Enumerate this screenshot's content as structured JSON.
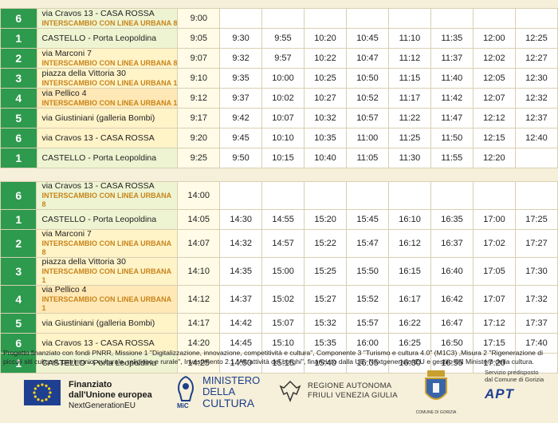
{
  "table1": {
    "rows": [
      {
        "num": "6",
        "stop": "via Cravos 13 - CASA ROSSA",
        "interchange": "INTERSCAMBIO CON LINEA URBANA 8",
        "times": [
          "9:00",
          "",
          "",
          "",
          "",
          "",
          "",
          "",
          ""
        ],
        "tone": "green"
      },
      {
        "num": "1",
        "stop": "CASTELLO - Porta Leopoldina",
        "interchange": "",
        "times": [
          "9:05",
          "9:30",
          "9:55",
          "10:20",
          "10:45",
          "11:10",
          "11:35",
          "12:00",
          "12:25"
        ],
        "tone": "green"
      },
      {
        "num": "2",
        "stop": "via Marconi 7",
        "interchange": "INTERSCAMBIO CON LINEA URBANA 8",
        "times": [
          "9:07",
          "9:32",
          "9:57",
          "10:22",
          "10:47",
          "11:12",
          "11:37",
          "12:02",
          "12:27"
        ],
        "tone": "yellow"
      },
      {
        "num": "3",
        "stop": "piazza della Vittoria 30",
        "interchange": "INTERSCAMBIO CON LINEA URBANA 1",
        "times": [
          "9:10",
          "9:35",
          "10:00",
          "10:25",
          "10:50",
          "11:15",
          "11:40",
          "12:05",
          "12:30"
        ],
        "tone": "yellow"
      },
      {
        "num": "4",
        "stop": "via Pellico 4",
        "interchange": "INTERSCAMBIO CON LINEA URBANA 1",
        "times": [
          "9:12",
          "9:37",
          "10:02",
          "10:27",
          "10:52",
          "11:17",
          "11:42",
          "12:07",
          "12:32"
        ],
        "tone": "orange"
      },
      {
        "num": "5",
        "stop": "via Giustiniani (galleria Bombi)",
        "interchange": "",
        "times": [
          "9:17",
          "9:42",
          "10:07",
          "10:32",
          "10:57",
          "11:22",
          "11:47",
          "12:12",
          "12:37"
        ],
        "tone": "yellow"
      },
      {
        "num": "6",
        "stop": "via Cravos 13 - CASA ROSSA",
        "interchange": "",
        "times": [
          "9:20",
          "9:45",
          "10:10",
          "10:35",
          "11:00",
          "11:25",
          "11:50",
          "12:15",
          "12:40"
        ],
        "tone": "yellow"
      },
      {
        "num": "1",
        "stop": "CASTELLO - Porta Leopoldina",
        "interchange": "",
        "times": [
          "9:25",
          "9:50",
          "10:15",
          "10:40",
          "11:05",
          "11:30",
          "11:55",
          "12:20",
          ""
        ],
        "tone": "green"
      }
    ]
  },
  "table2": {
    "rows": [
      {
        "num": "6",
        "stop": "via Cravos 13 - CASA ROSSA",
        "interchange": "INTERSCAMBIO CON LINEA URBANA 8",
        "times": [
          "14:00",
          "",
          "",
          "",
          "",
          "",
          "",
          "",
          ""
        ],
        "tone": "green"
      },
      {
        "num": "1",
        "stop": "CASTELLO - Porta Leopoldina",
        "interchange": "",
        "times": [
          "14:05",
          "14:30",
          "14:55",
          "15:20",
          "15:45",
          "16:10",
          "16:35",
          "17:00",
          "17:25"
        ],
        "tone": "green"
      },
      {
        "num": "2",
        "stop": "via Marconi 7",
        "interchange": "INTERSCAMBIO CON LINEA URBANA 8",
        "times": [
          "14:07",
          "14:32",
          "14:57",
          "15:22",
          "15:47",
          "16:12",
          "16:37",
          "17:02",
          "17:27"
        ],
        "tone": "yellow"
      },
      {
        "num": "3",
        "stop": "piazza della Vittoria 30",
        "interchange": "INTERSCAMBIO CON LINEA URBANA 1",
        "times": [
          "14:10",
          "14:35",
          "15:00",
          "15:25",
          "15:50",
          "16:15",
          "16:40",
          "17:05",
          "17:30"
        ],
        "tone": "yellow"
      },
      {
        "num": "4",
        "stop": "via Pellico 4",
        "interchange": "INTERSCAMBIO CON LINEA URBANA 1",
        "times": [
          "14:12",
          "14:37",
          "15:02",
          "15:27",
          "15:52",
          "16:17",
          "16:42",
          "17:07",
          "17:32"
        ],
        "tone": "orange"
      },
      {
        "num": "5",
        "stop": "via Giustiniani (galleria Bombi)",
        "interchange": "",
        "times": [
          "14:17",
          "14:42",
          "15:07",
          "15:32",
          "15:57",
          "16:22",
          "16:47",
          "17:12",
          "17:37"
        ],
        "tone": "yellow"
      },
      {
        "num": "6",
        "stop": "via Cravos 13 - CASA ROSSA",
        "interchange": "",
        "times": [
          "14:20",
          "14:45",
          "15:10",
          "15:35",
          "16:00",
          "16:25",
          "16:50",
          "17:15",
          "17:40"
        ],
        "tone": "yellow"
      },
      {
        "num": "1",
        "stop": "CASTELLO - Porta Leopoldina",
        "interchange": "",
        "times": [
          "14:25",
          "14:50",
          "15:15",
          "15:40",
          "16:05",
          "16:30",
          "16:55",
          "17:20",
          ""
        ],
        "tone": "green"
      }
    ]
  },
  "footer": {
    "text": "Progetto finanziato con fondi PNRR, Missione 1 \"Digitalizzazione, innovazione, competitività e cultura\", Componente 3 \"Turismo e cultura 4.0\" (M1C3) ,Misura 2 \"Rigenerazione di piccoli siti culturali, patrimonio, culturale, religioso e rurale\", Investimento 2.1 \"Attrattività dei borghi\", finanziato dalla UE- NextgenerationEU e gestito dal Ministero della cultura."
  },
  "logos": {
    "eu_line1": "Finanziato",
    "eu_line2": "dall'Unione europea",
    "eu_line3": "NextGenerationEU",
    "mic_line1": "MINISTERO",
    "mic_line2": "DELLA",
    "mic_line3": "CULTURA",
    "mic_tag": "MiC",
    "fvg_line1": "REGIONE AUTONOMA",
    "fvg_line2": "FRIULI VENEZIA GIULIA",
    "comune_caption": "COMUNE DI GORIZIA",
    "service_line1": "Servizio predisposto",
    "service_line2": "dal Comune di Gorizia",
    "apt_mark": "APT"
  },
  "colors": {
    "green": "#2d9a4e",
    "accent": "#c8841a",
    "eu_blue": "#1f3f91",
    "mic_blue": "#1c3f8a"
  }
}
